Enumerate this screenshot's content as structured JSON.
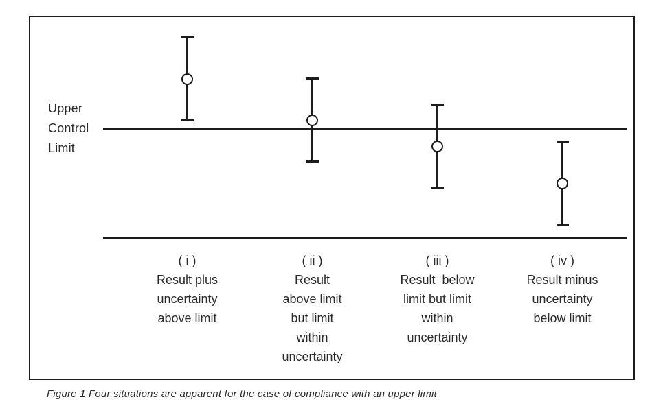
{
  "figure": {
    "caption": "Figure 1 Four situations are apparent for the case of compliance with an upper limit"
  },
  "chart_data": {
    "type": "scatter",
    "subtype": "error-bar compliance diagram",
    "title": "Figure 1 Four situations are apparent for the case of compliance with an upper limit",
    "upper_control_limit_label_lines": [
      "Upper",
      "Control",
      "Limit"
    ],
    "upper_control_limit_value": 0,
    "y_units": "arbitrary units relative to Upper Control Limit",
    "ylim": [
      -1.6,
      1.65
    ],
    "grid": false,
    "legend": "none",
    "marker": "open-circle",
    "categories": [
      "( i )",
      "( ii )",
      "( iii )",
      "( iv )"
    ],
    "points": [
      {
        "category": "( i )",
        "result": 0.73,
        "expanded_uncertainty": 0.61,
        "label_lines": [
          "Result plus",
          "uncertainty",
          "above limit"
        ]
      },
      {
        "category": "( ii )",
        "result": 0.13,
        "expanded_uncertainty": 0.61,
        "label_lines": [
          "Result",
          "above limit",
          "but limit",
          "within",
          "uncertainty"
        ]
      },
      {
        "category": "( iii )",
        "result": -0.25,
        "expanded_uncertainty": 0.61,
        "label_lines": [
          "Result  below",
          "limit but limit",
          "within",
          "uncertainty"
        ]
      },
      {
        "category": "( iv )",
        "result": -0.79,
        "expanded_uncertainty": 0.61,
        "label_lines": [
          "Result minus",
          "uncertainty",
          "below limit"
        ]
      }
    ]
  },
  "colors": {
    "line": "#1c1c1c",
    "text": "#2b2b2b",
    "background": "#ffffff"
  }
}
